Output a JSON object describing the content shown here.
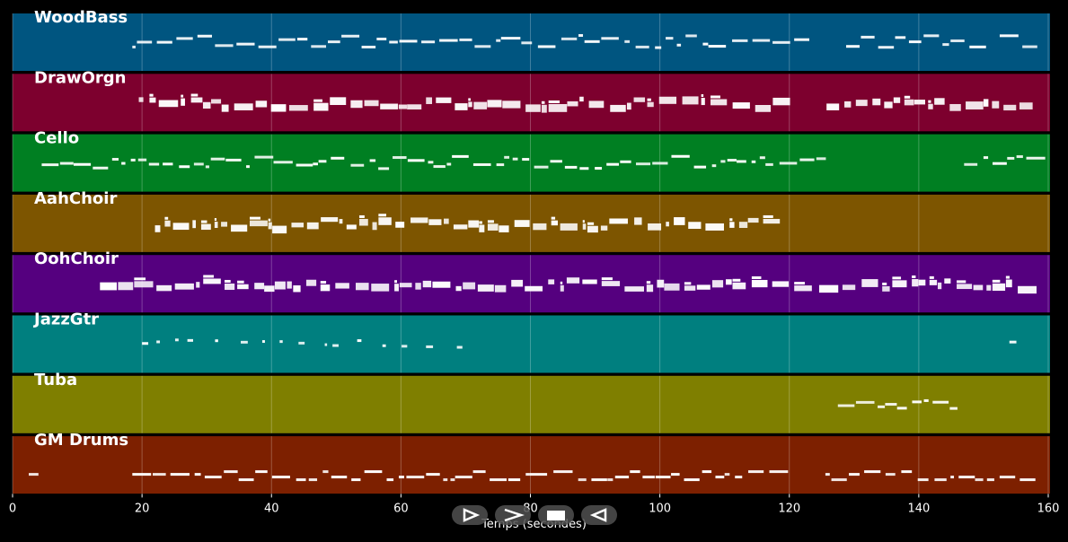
{
  "xaxis": {
    "title": "Temps (secondes)",
    "range": [
      0,
      160
    ],
    "ticks": [
      0,
      20,
      40,
      60,
      80,
      100,
      120,
      140,
      160
    ]
  },
  "tracks": [
    {
      "name": "WoodBass",
      "color": "#005580",
      "note_spans": [
        [
          18.5,
          149.5
        ],
        [
          152.5,
          158
        ]
      ],
      "gap_spans": [
        [
          121,
          125.5
        ]
      ],
      "style": "thin"
    },
    {
      "name": "DrawOrgn",
      "color": "#7d002e",
      "note_spans": [
        [
          19.5,
          149.5
        ],
        [
          150,
          158
        ]
      ],
      "gap_spans": [
        [
          120.5,
          125
        ]
      ],
      "style": "block"
    },
    {
      "name": "Cello",
      "color": "#007f22",
      "note_spans": [
        [
          4.5,
          124.5
        ],
        [
          147,
          158
        ]
      ],
      "gap_spans": [
        [
          125,
          147
        ]
      ],
      "style": "thin"
    },
    {
      "name": "AahChoir",
      "color": "#7d5500",
      "note_spans": [
        [
          22,
          116
        ]
      ],
      "gap_spans": [],
      "style": "block"
    },
    {
      "name": "OohChoir",
      "color": "#55007f",
      "note_spans": [
        [
          13.5,
          158
        ]
      ],
      "gap_spans": [
        [
          121,
          124
        ]
      ],
      "style": "block"
    },
    {
      "name": "JazzGtr",
      "color": "#007f7f",
      "note_spans": [
        [
          20,
          70
        ],
        [
          154,
          158
        ]
      ],
      "gap_spans": [],
      "style": "sparse"
    },
    {
      "name": "Tuba",
      "color": "#7f7f00",
      "note_spans": [
        [
          127.5,
          146
        ]
      ],
      "gap_spans": [],
      "style": "thin"
    },
    {
      "name": "GM Drums",
      "color": "#7d2000",
      "note_spans": [
        [
          2.5,
          3.5
        ],
        [
          18.5,
          157
        ]
      ],
      "gap_spans": [
        [
          120,
          125
        ]
      ],
      "style": "drums"
    }
  ],
  "controls": [
    {
      "name": "play-button",
      "icon": "play-icon"
    },
    {
      "name": "forward-button",
      "icon": "forward-icon"
    },
    {
      "name": "stop-button",
      "icon": "stop-icon"
    },
    {
      "name": "back-button",
      "icon": "back-icon"
    }
  ]
}
